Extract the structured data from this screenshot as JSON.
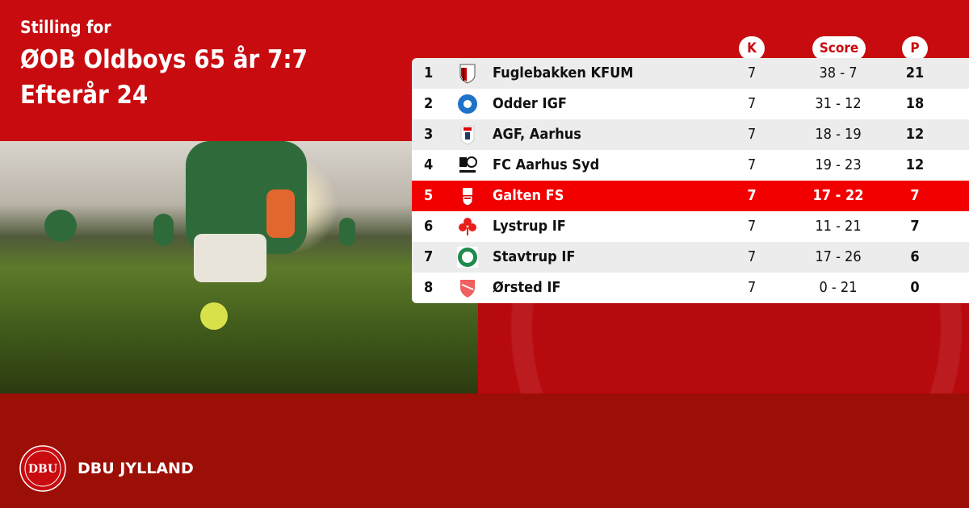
{
  "header": {
    "subtitle": "Stilling for",
    "title_line1": "ØOB Oldboys 65 år 7:7",
    "title_line2": "Efterår 24"
  },
  "columns": {
    "k": "K",
    "score": "Score",
    "p": "P"
  },
  "highlight_color": "#f20000",
  "rows": [
    {
      "rank": "1",
      "team": "Fuglebakken KFUM",
      "k": "7",
      "score": "38 - 7",
      "p": "21",
      "logo": "shield-red-black"
    },
    {
      "rank": "2",
      "team": "Odder IGF",
      "k": "7",
      "score": "31 - 12",
      "p": "18",
      "logo": "circle-blue"
    },
    {
      "rank": "3",
      "team": "AGF, Aarhus",
      "k": "7",
      "score": "18 - 19",
      "p": "12",
      "logo": "shield-white-red"
    },
    {
      "rank": "4",
      "team": "FC Aarhus Syd",
      "k": "7",
      "score": "19 - 23",
      "p": "12",
      "logo": "black-emblem"
    },
    {
      "rank": "5",
      "team": "Galten FS",
      "k": "7",
      "score": "17 - 22",
      "p": "7",
      "logo": "shield-red-white",
      "highlighted": true
    },
    {
      "rank": "6",
      "team": "Lystrup IF",
      "k": "7",
      "score": "11 - 21",
      "p": "7",
      "logo": "red-clover"
    },
    {
      "rank": "7",
      "team": "Stavtrup IF",
      "k": "7",
      "score": "17 - 26",
      "p": "6",
      "logo": "circle-green"
    },
    {
      "rank": "8",
      "team": "Ørsted IF",
      "k": "7",
      "score": "0 - 21",
      "p": "0",
      "logo": "shield-red"
    }
  ],
  "footer": {
    "org": "DBU JYLLAND",
    "logo_text": "DBU DANSK BOLDSPIL-UNION 1889"
  }
}
